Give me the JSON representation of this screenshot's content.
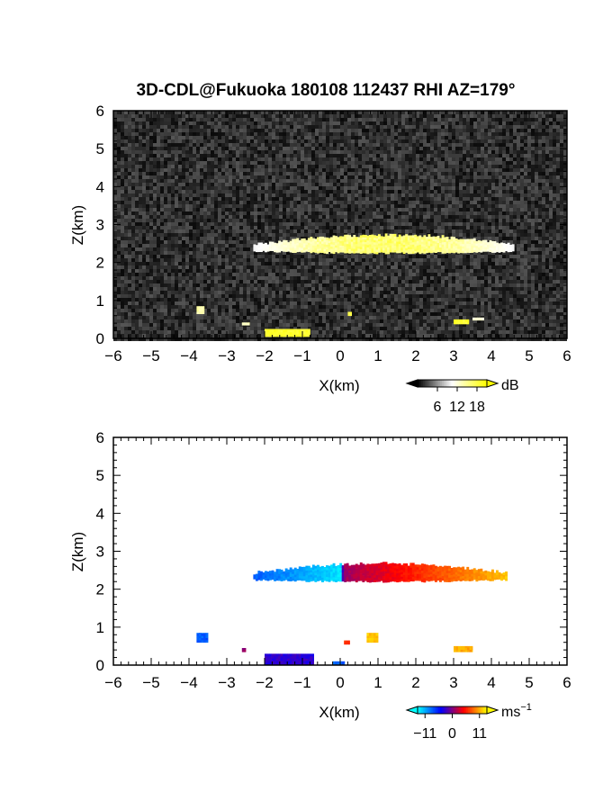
{
  "title": "3D-CDL@Fukuoka 180108 112437 RHI AZ=179°",
  "chart_data": [
    {
      "type": "heatmap",
      "panel": "reflectivity",
      "xlabel": "X(km)",
      "ylabel": "Z(km)",
      "xlim": [
        -6,
        6
      ],
      "ylim": [
        0,
        6
      ],
      "xticks": [
        "−6",
        "−5",
        "−4",
        "−3",
        "−2",
        "−1",
        "0",
        "1",
        "2",
        "3",
        "4",
        "5",
        "6"
      ],
      "yticks": [
        "0",
        "1",
        "2",
        "3",
        "4",
        "5",
        "6"
      ],
      "background": "noise",
      "colorbar": {
        "unit": "dB",
        "ticks": [
          "6",
          "12",
          "18"
        ],
        "range": [
          0,
          21
        ],
        "colors": [
          "#000000",
          "#ffffff",
          "#ffff00"
        ]
      },
      "layer": {
        "x_start": -2.3,
        "x_end": 4.6,
        "z_base": 2.25,
        "z_top": 2.7,
        "values_db": [
          10,
          18
        ]
      },
      "features": [
        {
          "name": "echo-patch",
          "x": [
            -3.8,
            -3.6
          ],
          "z": [
            0.65,
            0.85
          ],
          "value_db": 14
        },
        {
          "name": "echo-patch",
          "x": [
            -2.6,
            -2.4
          ],
          "z": [
            0.35,
            0.42
          ],
          "value_db": 13
        },
        {
          "name": "echo-strip",
          "x": [
            -2.0,
            -0.8
          ],
          "z": [
            0.05,
            0.25
          ],
          "value_db": 19
        },
        {
          "name": "echo-patch",
          "x": [
            3.0,
            3.4
          ],
          "z": [
            0.38,
            0.5
          ],
          "value_db": 19
        },
        {
          "name": "echo-patch",
          "x": [
            3.5,
            3.8
          ],
          "z": [
            0.48,
            0.55
          ],
          "value_db": 12
        },
        {
          "name": "echo-patch",
          "x": [
            0.2,
            0.3
          ],
          "z": [
            0.6,
            0.7
          ],
          "value_db": 18
        }
      ]
    },
    {
      "type": "heatmap",
      "panel": "doppler velocity",
      "xlabel": "X(km)",
      "ylabel": "Z(km)",
      "xlim": [
        -6,
        6
      ],
      "ylim": [
        0,
        6
      ],
      "xticks": [
        "−6",
        "−5",
        "−4",
        "−3",
        "−2",
        "−1",
        "0",
        "1",
        "2",
        "3",
        "4",
        "5",
        "6"
      ],
      "yticks": [
        "0",
        "1",
        "2",
        "3",
        "4",
        "5",
        "6"
      ],
      "background": "white",
      "colorbar": {
        "unit": "ms",
        "unit_exponent": "−1",
        "ticks": [
          "−11",
          "0",
          "11"
        ],
        "range": [
          -14,
          14
        ],
        "colors": [
          "#00ffff",
          "#0000ff",
          "#ff0000",
          "#ffff00"
        ]
      },
      "layer": {
        "x_start": -2.3,
        "x_end": 4.4,
        "z_base": 2.2,
        "z_top": 2.65,
        "velocity_at_x": [
          [
            -2.3,
            -8
          ],
          [
            0,
            -13
          ],
          [
            0.05,
            1
          ],
          [
            2.0,
            6
          ],
          [
            4.4,
            12
          ]
        ]
      },
      "features": [
        {
          "name": "echo-patch",
          "x": [
            -3.8,
            -3.5
          ],
          "z": [
            0.6,
            0.85
          ],
          "value_ms": -8
        },
        {
          "name": "echo-patch",
          "x": [
            -2.6,
            -2.5
          ],
          "z": [
            0.35,
            0.45
          ],
          "value_ms": 1
        },
        {
          "name": "echo-strip",
          "x": [
            -2.0,
            -0.7
          ],
          "z": [
            0.0,
            0.3
          ],
          "value_ms": -3
        },
        {
          "name": "echo-patch",
          "x": [
            -0.2,
            0.1
          ],
          "z": [
            0.0,
            0.1
          ],
          "value_ms": -8
        },
        {
          "name": "echo-patch",
          "x": [
            0.1,
            0.25
          ],
          "z": [
            0.55,
            0.65
          ],
          "value_ms": 6
        },
        {
          "name": "echo-patch",
          "x": [
            0.7,
            1.0
          ],
          "z": [
            0.6,
            0.85
          ],
          "value_ms": 12
        },
        {
          "name": "echo-patch",
          "x": [
            3.0,
            3.5
          ],
          "z": [
            0.35,
            0.5
          ],
          "value_ms": 11
        }
      ]
    }
  ]
}
